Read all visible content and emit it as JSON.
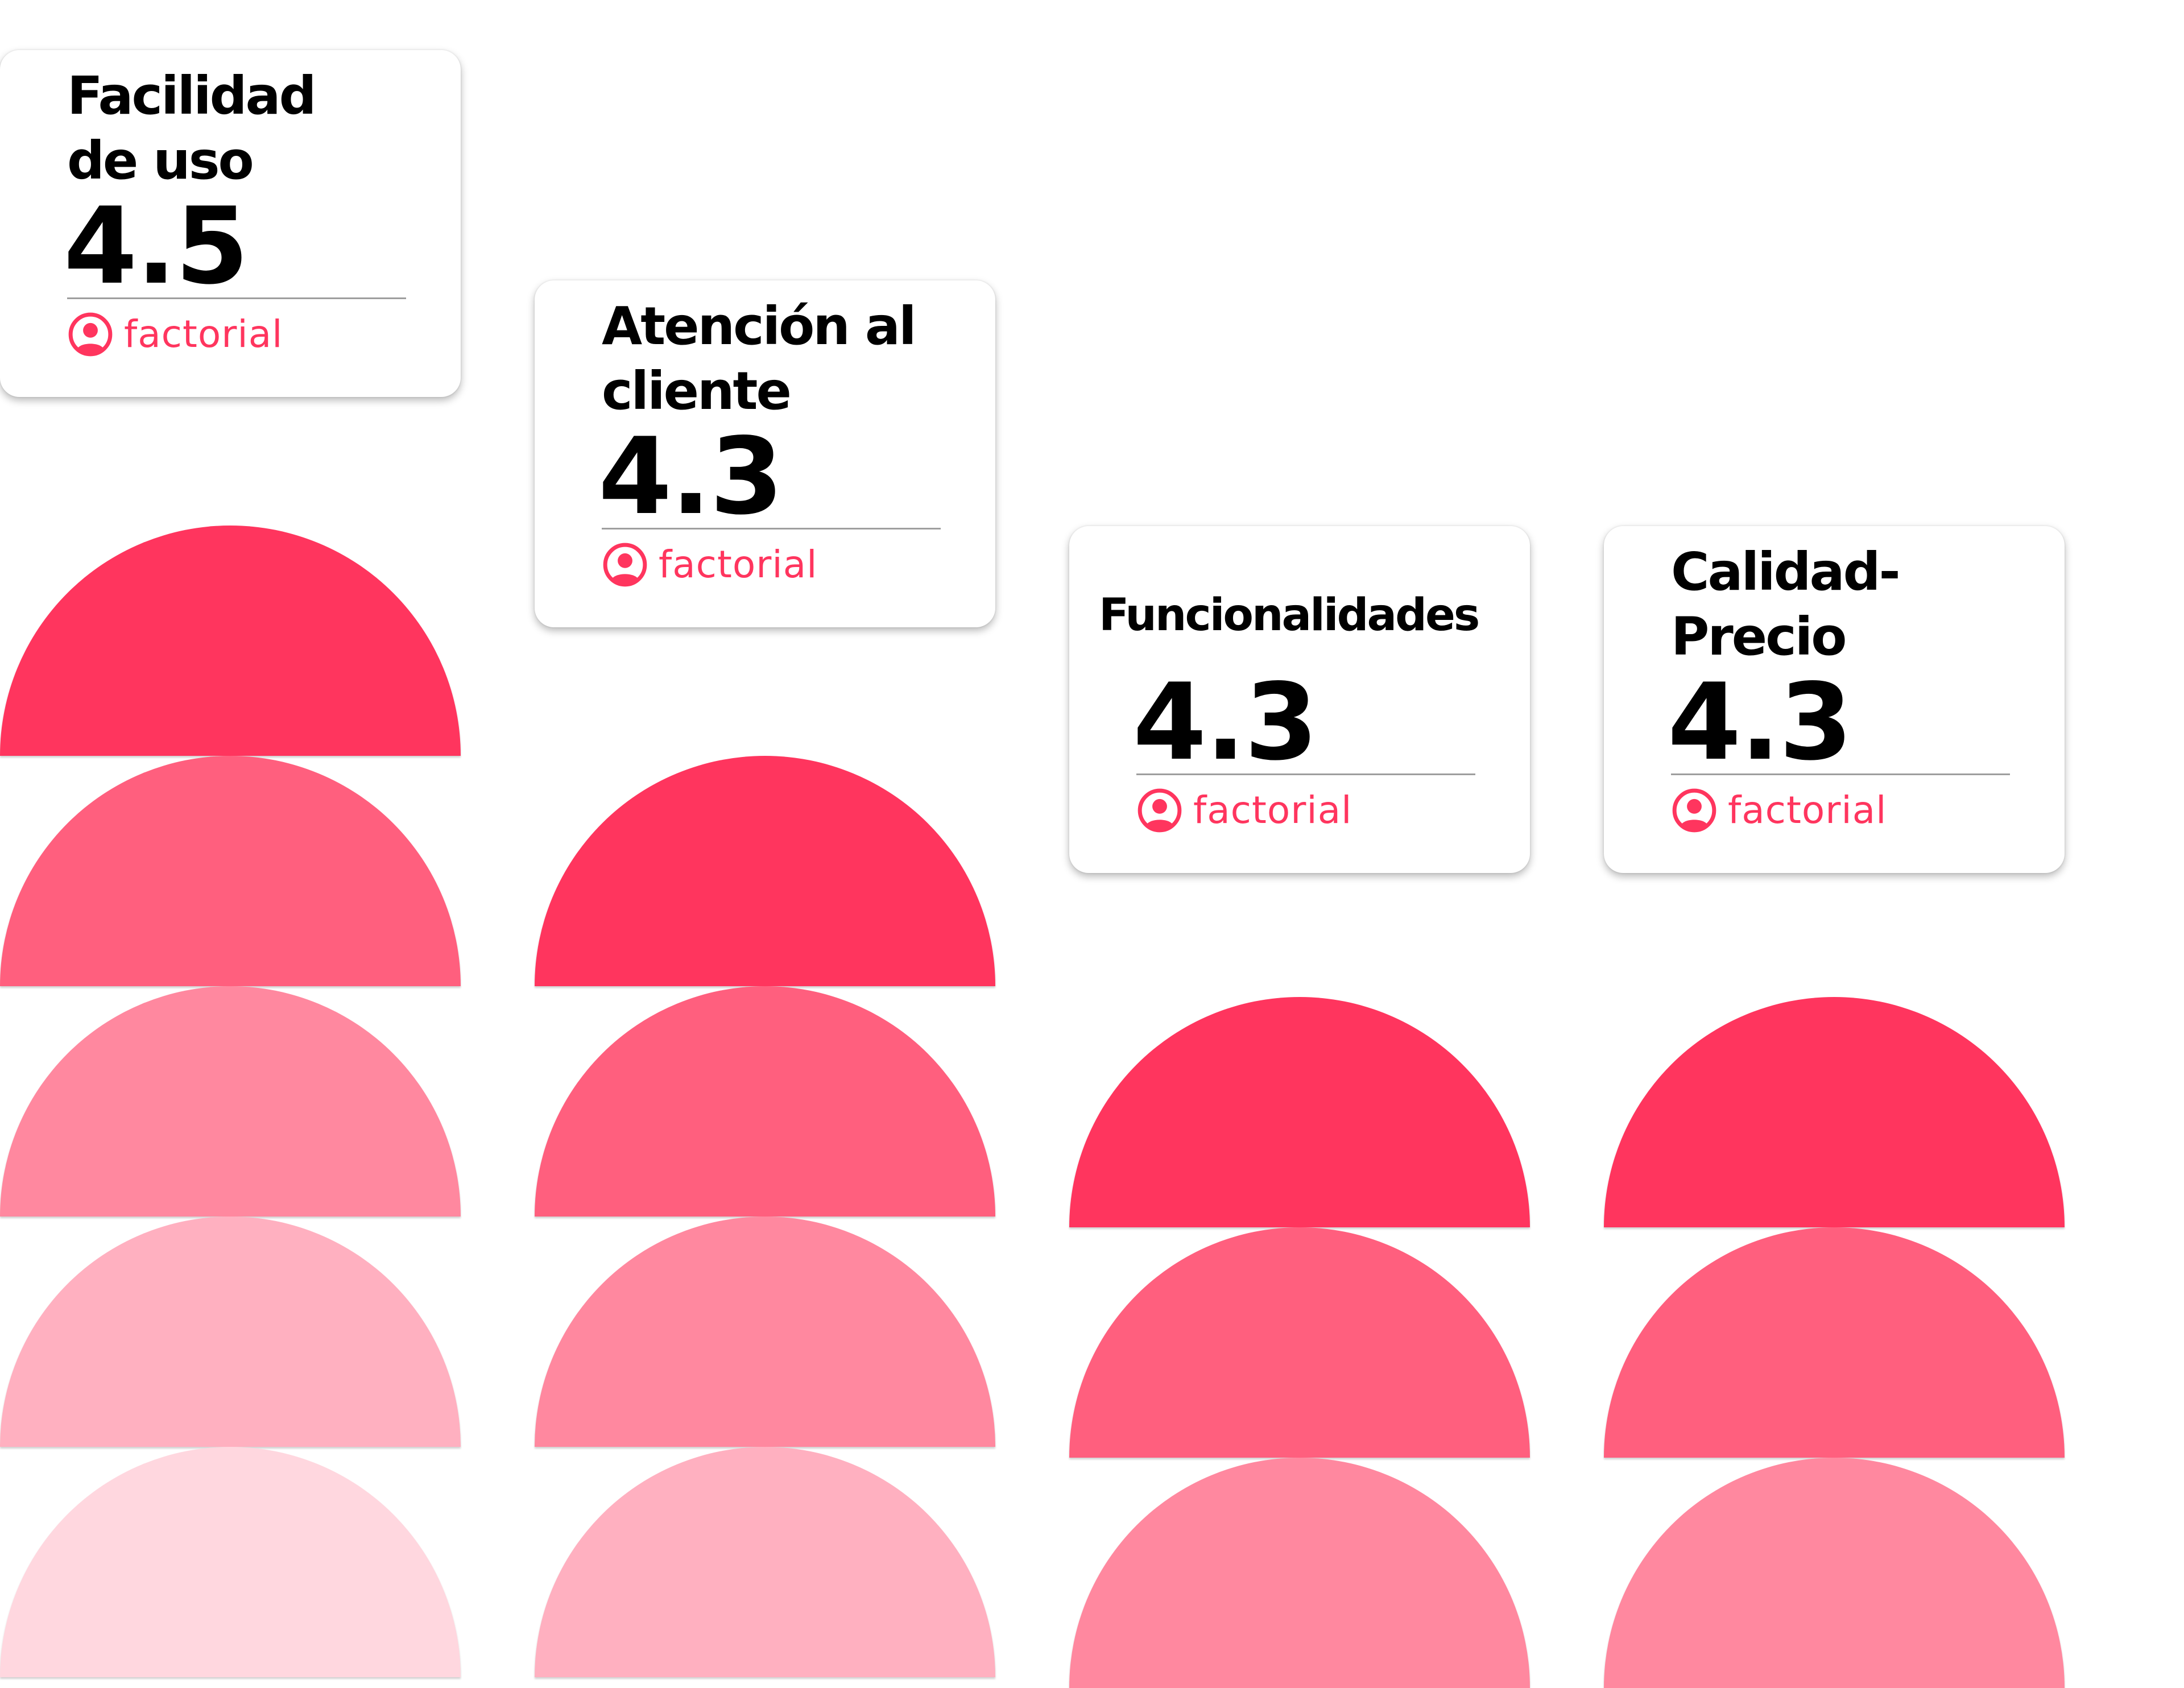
{
  "brand": {
    "name": "factorial",
    "logo_icon": "factorial-user-circle-icon",
    "accent_color": "#ff355e"
  },
  "palette": {
    "dome_tones": [
      "#ff355e",
      "#ff5f7e",
      "#ff889f",
      "#ffb0c0",
      "#ffd7df"
    ]
  },
  "ratings": [
    {
      "title": "Facilidad\nde uso",
      "score": "4.5"
    },
    {
      "title": "Atención al\ncliente",
      "score": "4.3"
    },
    {
      "title": "Funcionalidades",
      "score": "4.3"
    },
    {
      "title": "Calidad-\nPrecio",
      "score": "4.3"
    }
  ]
}
